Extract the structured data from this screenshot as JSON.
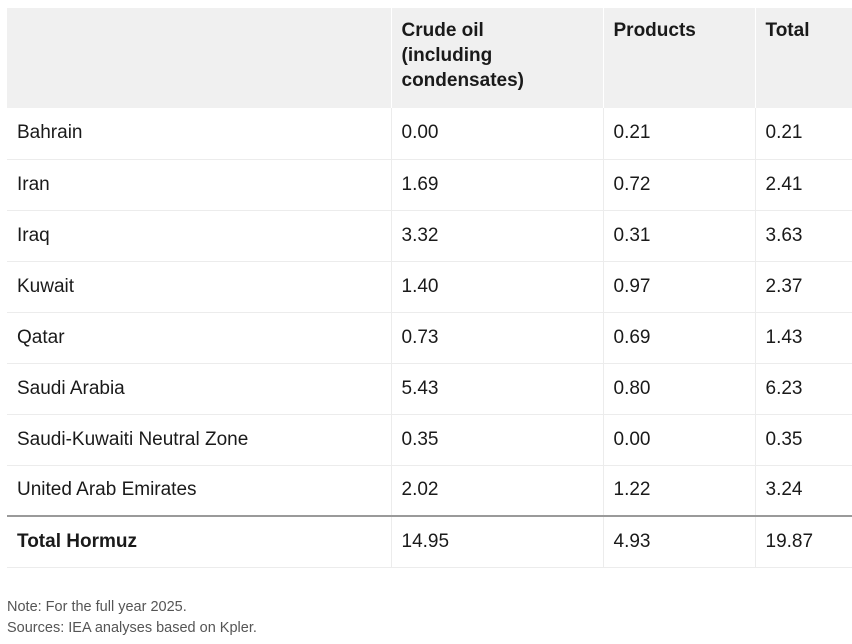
{
  "table": {
    "headers": [
      "",
      "Crude oil\n(including\ncondensates)",
      "Products",
      "Total"
    ],
    "header_lines": {
      "crude": [
        "Crude oil",
        "(including",
        "condensates)"
      ],
      "products": "Products",
      "total": "Total"
    },
    "rows": [
      [
        "Bahrain",
        "0.00",
        "0.21",
        "0.21"
      ],
      [
        "Iran",
        "1.69",
        "0.72",
        "2.41"
      ],
      [
        "Iraq",
        "3.32",
        "0.31",
        "3.63"
      ],
      [
        "Kuwait",
        "1.40",
        "0.97",
        "2.37"
      ],
      [
        "Qatar",
        "0.73",
        "0.69",
        "1.43"
      ],
      [
        "Saudi Arabia",
        "5.43",
        "0.80",
        "6.23"
      ],
      [
        "Saudi-Kuwaiti Neutral Zone",
        "0.35",
        "0.00",
        "0.35"
      ],
      [
        "United Arab Emirates",
        "2.02",
        "1.22",
        "3.24"
      ]
    ],
    "total_row": [
      "Total Hormuz",
      "14.95",
      "4.93",
      "19.87"
    ]
  },
  "notes": {
    "note": "Note: For the full year 2025.",
    "sources": "Sources: IEA analyses based on Kpler."
  }
}
